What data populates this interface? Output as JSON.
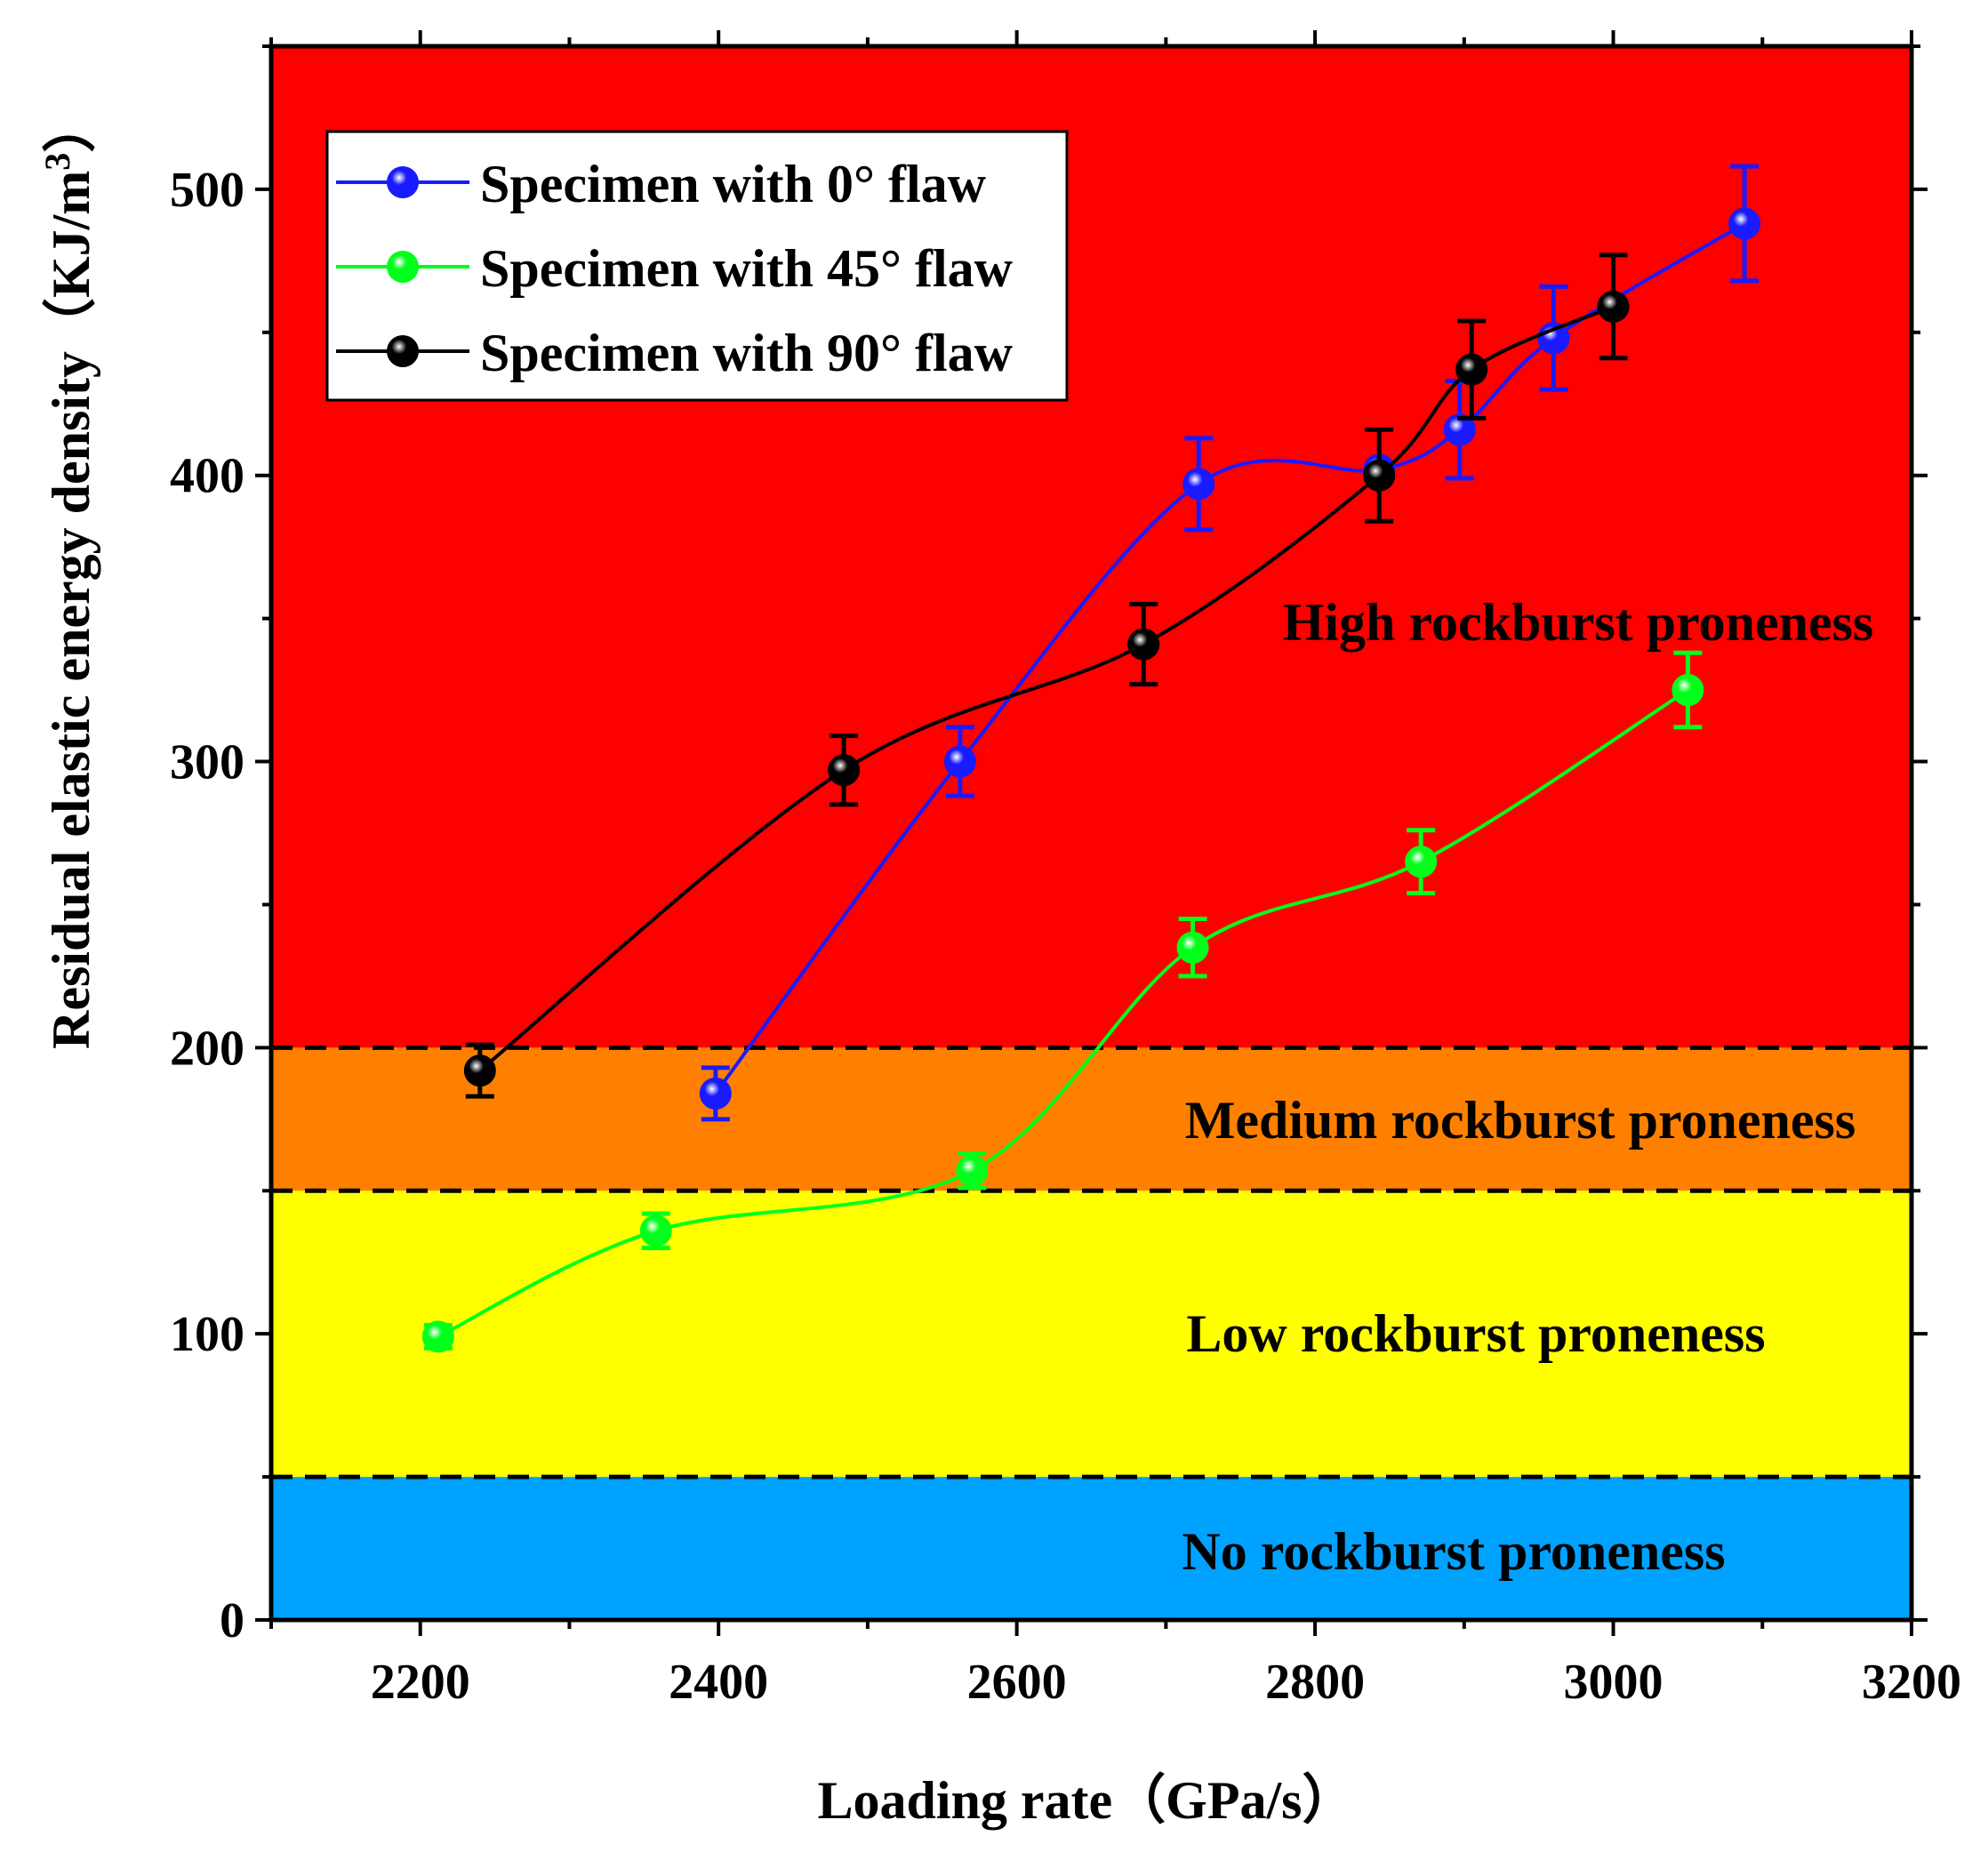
{
  "chart_data": {
    "type": "line",
    "xlabel": "Loading rate（GPa/s）",
    "ylabel": "Residual elastic energy density（KJ/m",
    "ylabel_sup": "3",
    "ylabel_close": "）",
    "xlim": [
      2100,
      3200
    ],
    "ylim": [
      0,
      550
    ],
    "xticks": [
      2200,
      2400,
      2600,
      2800,
      3000,
      3200
    ],
    "yticks": [
      0,
      100,
      200,
      300,
      400,
      500
    ],
    "grid": false,
    "legend_position": "top-left",
    "zones": [
      {
        "name": "No rockburst proneness",
        "from": 0,
        "to": 50,
        "color": "#00a2ff"
      },
      {
        "name": "Low rockburst proneness",
        "from": 50,
        "to": 150,
        "color": "#ffff00"
      },
      {
        "name": "Medium rockburst proneness",
        "from": 150,
        "to": 200,
        "color": "#ff8000"
      },
      {
        "name": "High rockburst proneness",
        "from": 200,
        "to": 550,
        "color": "#ff0000"
      }
    ],
    "thresholds": [
      50,
      150,
      200
    ],
    "series": [
      {
        "name": "Specimen with 0° flaw",
        "color": "#1a1aff",
        "x": [
          2398,
          2562,
          2722,
          2843,
          2897,
          2960,
          3088
        ],
        "y": [
          184,
          300,
          397,
          402,
          416,
          448,
          488
        ],
        "err": [
          9,
          12,
          16,
          0,
          17,
          18,
          20
        ]
      },
      {
        "name": "Specimen with 45° flaw",
        "color": "#00ff1a",
        "x": [
          2212,
          2358,
          2570,
          2718,
          2871,
          3050
        ],
        "y": [
          99,
          136,
          157,
          235,
          265,
          325
        ],
        "err": [
          4,
          6,
          6,
          10,
          11,
          13
        ]
      },
      {
        "name": "Specimen with 90° flaw",
        "color": "#000000",
        "x": [
          2240,
          2484,
          2685,
          2843,
          2905,
          3000
        ],
        "y": [
          192,
          297,
          341,
          400,
          437,
          459
        ],
        "err": [
          9,
          12,
          14,
          16,
          17,
          18
        ]
      }
    ]
  }
}
